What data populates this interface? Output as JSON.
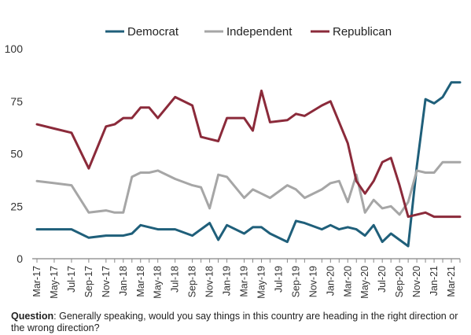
{
  "chart_data": {
    "type": "line",
    "title": "",
    "xlabel": "",
    "ylabel": "",
    "ylim": [
      0,
      100
    ],
    "yticks": [
      0,
      25,
      50,
      75,
      100
    ],
    "grid": false,
    "legend_position": "top",
    "x_tick_labels": [
      "Mar-17",
      "May-17",
      "Jul-17",
      "Sep-17",
      "Nov-17",
      "Jan-18",
      "Mar-18",
      "May-18",
      "Jul-18",
      "Sep-18",
      "Nov-18",
      "Jan-19",
      "Mar-19",
      "May-19",
      "Jul-19",
      "Sep-19",
      "Nov-19",
      "Jan-20",
      "Mar-20",
      "May-20",
      "Jul-20",
      "Sep-20",
      "Nov-20",
      "Jan-21",
      "Mar-21"
    ],
    "x": [
      "Mar-17",
      "May-17",
      "Jul-17",
      "Sep-17",
      "Nov-17",
      "Dec-17",
      "Jan-18",
      "Feb-18",
      "Mar-18",
      "Apr-18",
      "May-18",
      "Jul-18",
      "Sep-18",
      "Oct-18",
      "Nov-18",
      "Dec-18",
      "Jan-19",
      "Mar-19",
      "Apr-19",
      "May-19",
      "Jun-19",
      "Aug-19",
      "Sep-19",
      "Oct-19",
      "Dec-19",
      "Jan-20",
      "Feb-20",
      "Mar-20",
      "Apr-20",
      "May-20",
      "Jun-20",
      "Jul-20",
      "Aug-20",
      "Sep-20",
      "Oct-20",
      "Nov-20",
      "Dec-20",
      "Jan-21",
      "Feb-21",
      "Mar-21",
      "Apr-21"
    ],
    "series": [
      {
        "name": "Democrat",
        "color": "#1f5f7a",
        "values": [
          14,
          14,
          14,
          10,
          11,
          11,
          11,
          12,
          16,
          15,
          14,
          14,
          11,
          14,
          17,
          9,
          16,
          12,
          15,
          15,
          12,
          8,
          18,
          17,
          14,
          16,
          14,
          15,
          14,
          11,
          16,
          8,
          12,
          9,
          6,
          44,
          76,
          74,
          77,
          84,
          84
        ]
      },
      {
        "name": "Independent",
        "color": "#a6a6a6",
        "values": [
          37,
          36,
          35,
          22,
          23,
          22,
          22,
          39,
          41,
          41,
          42,
          38,
          35,
          34,
          24,
          40,
          39,
          29,
          33,
          31,
          29,
          35,
          33,
          29,
          33,
          36,
          37,
          27,
          40,
          22,
          28,
          24,
          25,
          21,
          27,
          42,
          41,
          41,
          46,
          46,
          46
        ]
      },
      {
        "name": "Republican",
        "color": "#8b2a3a",
        "values": [
          64,
          62,
          60,
          43,
          63,
          64,
          67,
          67,
          72,
          72,
          67,
          77,
          73,
          58,
          57,
          56,
          67,
          67,
          61,
          80,
          65,
          66,
          69,
          68,
          73,
          75,
          65,
          55,
          37,
          31,
          37,
          46,
          48,
          35,
          20,
          21,
          22,
          20,
          20,
          20,
          20
        ]
      }
    ]
  },
  "footnote": {
    "label": "Question",
    "text": ": Generally speaking, would you say things in this country are heading in the right direction or the wrong direction?"
  }
}
